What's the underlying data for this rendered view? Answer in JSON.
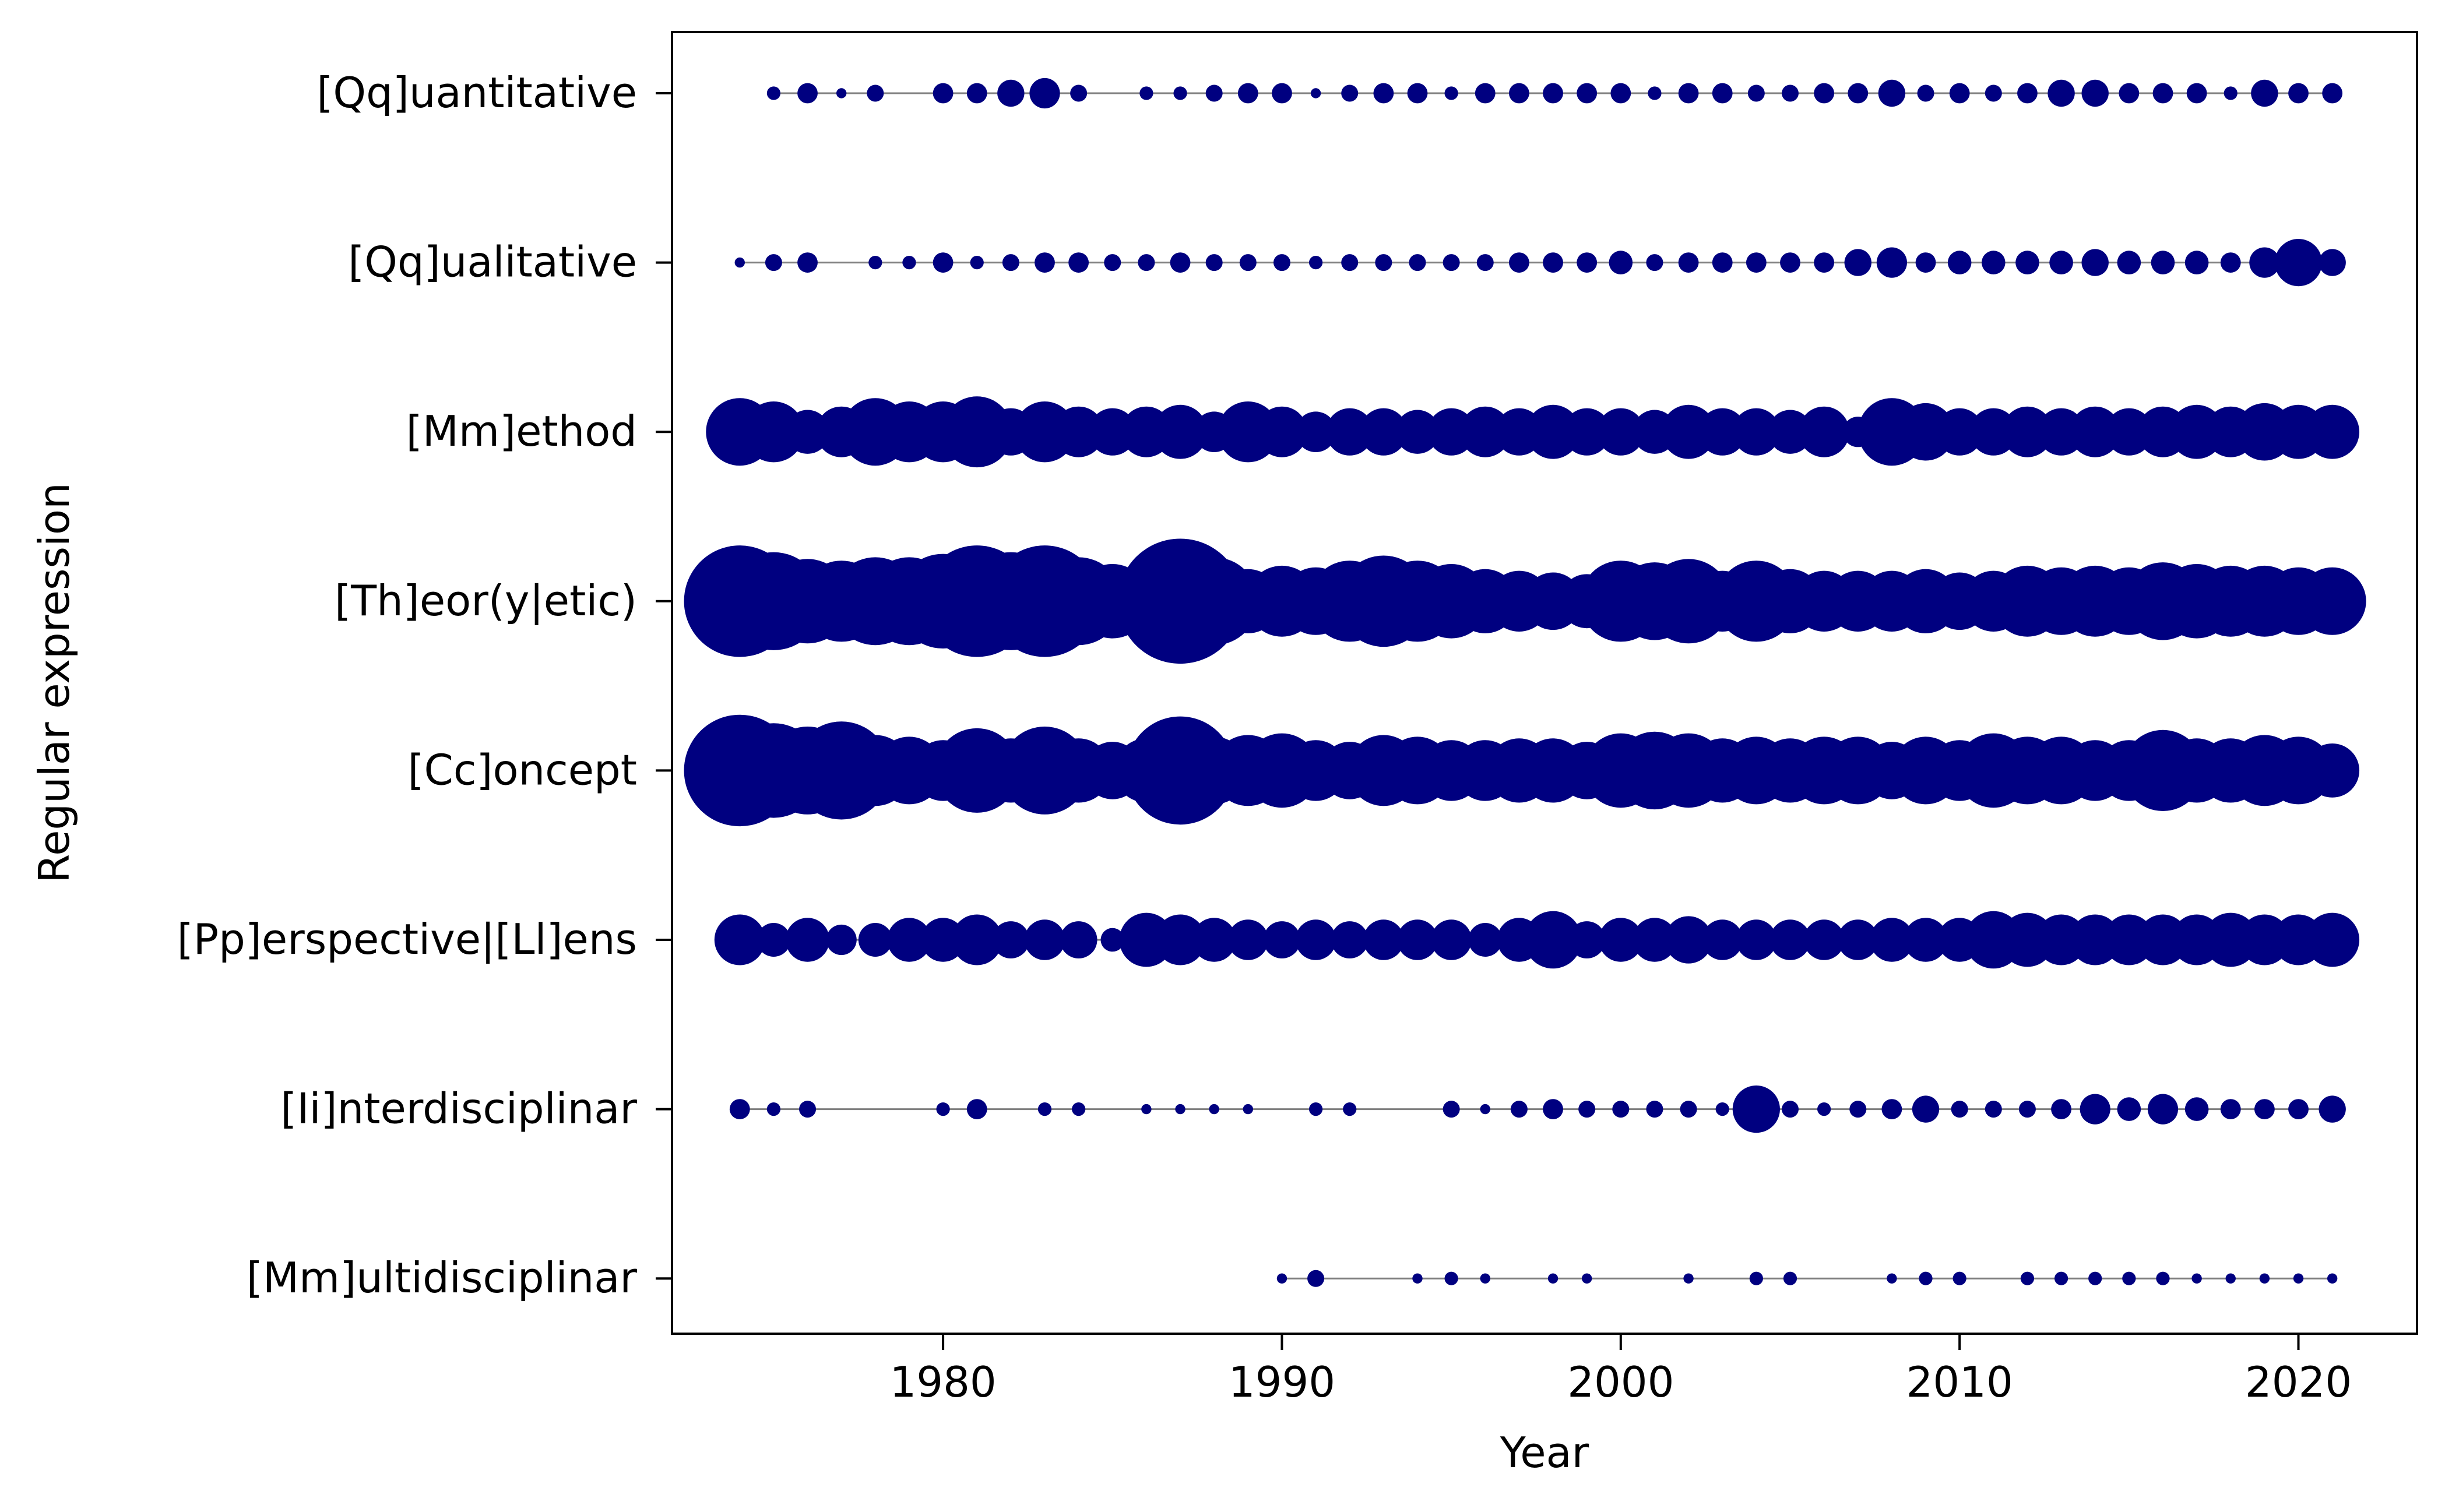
{
  "chart_data": {
    "type": "scatter",
    "title": "",
    "xlabel": "Year",
    "ylabel": "Regular expression",
    "xlim": [
      1972,
      2023.5
    ],
    "x_ticks": [
      1980,
      1990,
      2000,
      2010,
      2020
    ],
    "grid": false,
    "marker_color": "#000080",
    "line_color": "#808080",
    "size_encoding": "relative frequency (visual estimate, arbitrary units)",
    "categories": [
      "[Qq]uantitative",
      "[Qq]ualitative",
      "[Mm]ethod",
      "[Th]eor(y|etic)",
      "[Cc]oncept",
      "[Pp]erspective|[Ll]ens",
      "[Ii]nterdisciplinar",
      "[Mm]ultidisciplinar"
    ],
    "series": [
      {
        "category": "[Qq]uantitative",
        "x": [
          1975,
          1976,
          1977,
          1978,
          1980,
          1981,
          1982,
          1983,
          1984,
          1986,
          1987,
          1988,
          1989,
          1990,
          1991,
          1992,
          1993,
          1994,
          1995,
          1996,
          1997,
          1998,
          1999,
          2000,
          2001,
          2002,
          2003,
          2004,
          2005,
          2006,
          2007,
          2008,
          2009,
          2010,
          2011,
          2012,
          2013,
          2014,
          2015,
          2016,
          2017,
          2018,
          2019,
          2020,
          2021
        ],
        "sizes": [
          2,
          3,
          1.5,
          2.5,
          3,
          3,
          4,
          4.5,
          2.5,
          2,
          2,
          2.5,
          3,
          3,
          1.5,
          2.5,
          3,
          3,
          2,
          3,
          3,
          3,
          3,
          3,
          2,
          3,
          3,
          2.5,
          2.5,
          3,
          3,
          4,
          2.5,
          3,
          2.5,
          3,
          4,
          4,
          3,
          3,
          3,
          2,
          4,
          3,
          3
        ]
      },
      {
        "category": "[Qq]ualitative",
        "x": [
          1974,
          1975,
          1976,
          1978,
          1979,
          1980,
          1981,
          1982,
          1983,
          1984,
          1985,
          1986,
          1987,
          1988,
          1989,
          1990,
          1991,
          1992,
          1993,
          1994,
          1995,
          1996,
          1997,
          1998,
          1999,
          2000,
          2001,
          2002,
          2003,
          2004,
          2005,
          2006,
          2007,
          2008,
          2009,
          2010,
          2011,
          2012,
          2013,
          2014,
          2015,
          2016,
          2017,
          2018,
          2019,
          2020,
          2021
        ],
        "sizes": [
          1.5,
          2.5,
          3,
          2,
          2,
          3,
          2,
          2.5,
          3,
          3,
          2.5,
          2.5,
          3,
          2.5,
          2.5,
          2.5,
          2,
          2.5,
          2.5,
          2.5,
          2.5,
          2.5,
          3,
          3,
          3,
          3.5,
          2.5,
          3,
          3,
          3,
          3,
          3,
          4,
          4.5,
          3,
          3.5,
          3.5,
          3.5,
          3.5,
          4,
          3.5,
          3.5,
          3.5,
          3,
          4.5,
          7,
          4
        ]
      },
      {
        "category": "[Mm]ethod",
        "x": [
          1974,
          1975,
          1976,
          1977,
          1978,
          1979,
          1980,
          1981,
          1982,
          1983,
          1984,
          1985,
          1986,
          1987,
          1988,
          1989,
          1990,
          1991,
          1992,
          1993,
          1994,
          1995,
          1996,
          1997,
          1998,
          1999,
          2000,
          2001,
          2002,
          2003,
          2004,
          2005,
          2006,
          2007,
          2008,
          2009,
          2010,
          2011,
          2012,
          2013,
          2014,
          2015,
          2016,
          2017,
          2018,
          2019,
          2020,
          2021
        ],
        "sizes": [
          10,
          9,
          6.5,
          7.5,
          10,
          9,
          9,
          10.5,
          7,
          9,
          7.5,
          7,
          7.5,
          8,
          6,
          9,
          7.5,
          6,
          7,
          7,
          6.5,
          7,
          7.5,
          7,
          8,
          7,
          7,
          6.5,
          8,
          7,
          7,
          6.5,
          7.5,
          4.5,
          10,
          8.5,
          7,
          7,
          7.5,
          7,
          7.5,
          7,
          7.5,
          8,
          7.5,
          8.5,
          8,
          8
        ]
      },
      {
        "category": "[Th]eor(y|etic)",
        "x": [
          1974,
          1975,
          1976,
          1977,
          1978,
          1979,
          1980,
          1981,
          1982,
          1983,
          1984,
          1985,
          1986,
          1987,
          1988,
          1989,
          1990,
          1991,
          1992,
          1993,
          1994,
          1995,
          1996,
          1997,
          1998,
          1999,
          2000,
          2001,
          2002,
          2003,
          2004,
          2005,
          2006,
          2007,
          2008,
          2009,
          2010,
          2011,
          2012,
          2013,
          2014,
          2015,
          2016,
          2017,
          2018,
          2019,
          2020,
          2021
        ],
        "sizes": [
          16.5,
          14.5,
          12.5,
          12,
          13,
          13,
          14,
          16.5,
          14.5,
          16.5,
          13,
          11,
          11.5,
          18.5,
          13,
          9.5,
          10.5,
          10,
          12,
          13.5,
          12,
          11,
          9.5,
          9,
          8.5,
          8,
          12,
          11.5,
          12.5,
          9,
          12,
          9.5,
          9,
          9,
          9,
          9.5,
          8.5,
          9,
          10.5,
          10,
          10.5,
          10,
          11.5,
          11,
          10.5,
          10.5,
          10,
          10
        ]
      },
      {
        "category": "[Cc]oncept",
        "x": [
          1974,
          1975,
          1976,
          1977,
          1978,
          1979,
          1980,
          1981,
          1982,
          1983,
          1984,
          1985,
          1986,
          1987,
          1988,
          1989,
          1990,
          1991,
          1992,
          1993,
          1994,
          1995,
          1996,
          1997,
          1998,
          1999,
          2000,
          2001,
          2002,
          2003,
          2004,
          2005,
          2006,
          2007,
          2008,
          2009,
          2010,
          2011,
          2012,
          2013,
          2014,
          2015,
          2016,
          2017,
          2018,
          2019,
          2020,
          2021
        ],
        "sizes": [
          16.5,
          14,
          13,
          14.5,
          10.5,
          10,
          9,
          12.5,
          9.5,
          13,
          9.5,
          8.5,
          9.5,
          16,
          10,
          10.5,
          11,
          9,
          8.5,
          10.5,
          10,
          9,
          9,
          9.5,
          9.5,
          8.5,
          11,
          11.5,
          11,
          9.5,
          10,
          9.5,
          10,
          10,
          8.5,
          10,
          9,
          11,
          10,
          10,
          9,
          9,
          12,
          9.5,
          9.5,
          10.5,
          10,
          8
        ]
      },
      {
        "category": "[Pp]erspective|[Ll]ens",
        "x": [
          1974,
          1975,
          1976,
          1977,
          1978,
          1979,
          1980,
          1981,
          1982,
          1983,
          1984,
          1985,
          1986,
          1987,
          1988,
          1989,
          1990,
          1991,
          1992,
          1993,
          1994,
          1995,
          1996,
          1997,
          1998,
          1999,
          2000,
          2001,
          2002,
          2003,
          2004,
          2005,
          2006,
          2007,
          2008,
          2009,
          2010,
          2011,
          2012,
          2013,
          2014,
          2015,
          2016,
          2017,
          2018,
          2019,
          2020,
          2021
        ],
        "sizes": [
          7.5,
          5,
          6.5,
          4.5,
          5,
          6.5,
          6.5,
          7.5,
          5.5,
          6,
          5.5,
          3.5,
          8,
          7.5,
          6.5,
          6,
          5.5,
          6,
          5.5,
          6,
          6,
          6,
          5,
          6.5,
          8.5,
          5.5,
          6.5,
          6.5,
          7,
          6,
          6,
          6,
          6,
          6,
          6.5,
          6.5,
          6.5,
          8.5,
          8,
          7.5,
          7.5,
          7.5,
          7.5,
          7.5,
          8,
          7.5,
          7.5,
          8
        ]
      },
      {
        "category": "[Ii]nterdisciplinar",
        "x": [
          1974,
          1975,
          1976,
          1980,
          1981,
          1983,
          1984,
          1986,
          1987,
          1988,
          1989,
          1991,
          1992,
          1995,
          1996,
          1997,
          1998,
          1999,
          2000,
          2001,
          2002,
          2003,
          2004,
          2005,
          2006,
          2007,
          2008,
          2009,
          2010,
          2011,
          2012,
          2013,
          2014,
          2015,
          2016,
          2017,
          2018,
          2019,
          2020,
          2021
        ],
        "sizes": [
          3,
          2,
          2.5,
          2,
          3,
          2,
          2,
          1.5,
          1.5,
          1.5,
          1.5,
          2,
          2,
          2.5,
          1.5,
          2.5,
          3,
          2.5,
          2.5,
          2.5,
          2.5,
          2,
          7,
          2.5,
          2,
          2.5,
          3,
          4,
          2.5,
          2.5,
          2.5,
          3,
          4.5,
          3.5,
          4.5,
          3.5,
          3,
          3,
          3,
          4
        ]
      },
      {
        "category": "[Mm]ultidisciplinar",
        "x": [
          1990,
          1991,
          1994,
          1995,
          1996,
          1998,
          1999,
          2002,
          2004,
          2005,
          2008,
          2009,
          2010,
          2012,
          2013,
          2014,
          2015,
          2016,
          2017,
          2018,
          2019,
          2020,
          2021
        ],
        "sizes": [
          1.5,
          2.5,
          1.5,
          2,
          1.5,
          1.5,
          1.5,
          1.5,
          2,
          2,
          1.5,
          2,
          2,
          2,
          2,
          2,
          2,
          2,
          1.5,
          1.5,
          1.5,
          1.5,
          1.5
        ]
      }
    ]
  }
}
